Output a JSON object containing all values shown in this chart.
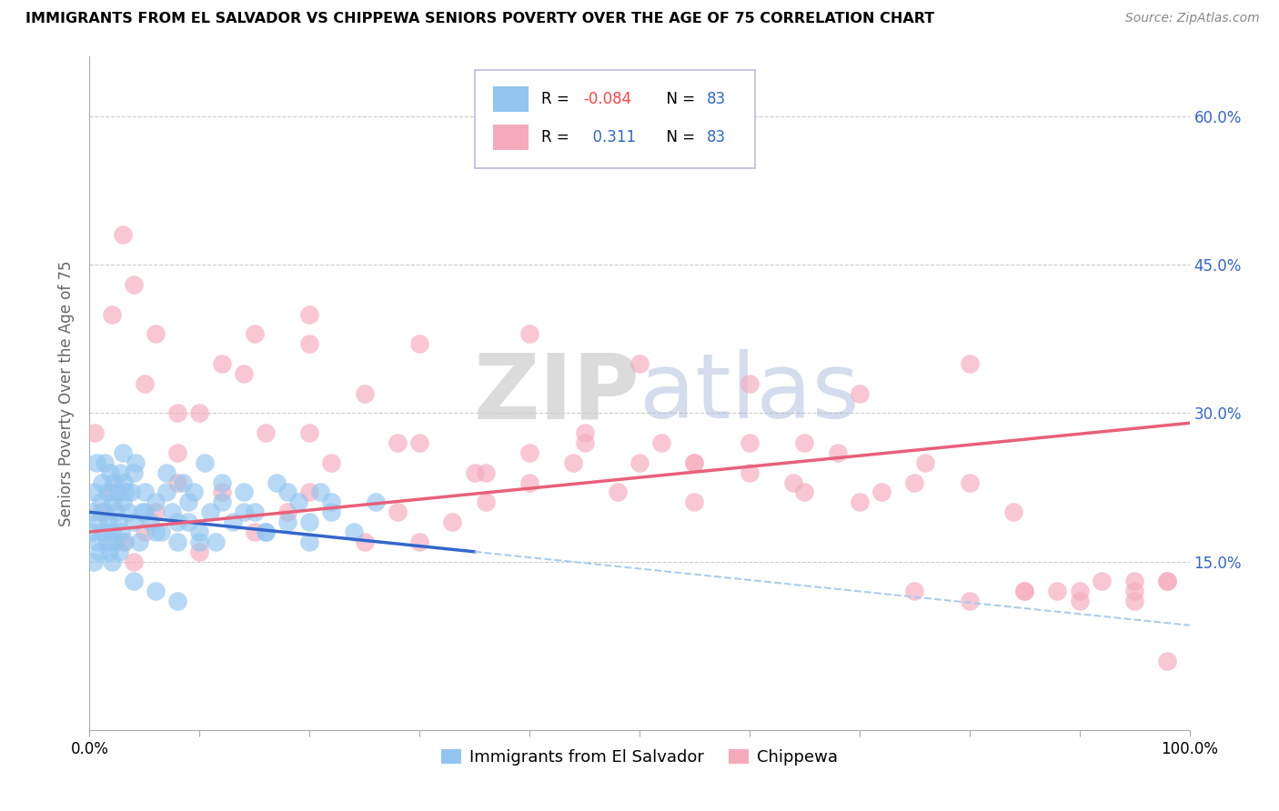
{
  "title": "IMMIGRANTS FROM EL SALVADOR VS CHIPPEWA SENIORS POVERTY OVER THE AGE OF 75 CORRELATION CHART",
  "source": "Source: ZipAtlas.com",
  "ylabel": "Seniors Poverty Over the Age of 75",
  "color_blue": "#92C5F0",
  "color_pink": "#F5AABC",
  "color_blue_line": "#3366CC",
  "color_pink_line": "#E8607A",
  "color_dashed": "#AACCEE",
  "watermark_color": "#D8E8F5",
  "legend_r1_color": "#FF4444",
  "legend_blue_color": "#3366CC",
  "ytick_color": "#3366CC",
  "blue_x": [
    0.2,
    0.3,
    0.4,
    0.5,
    0.6,
    0.7,
    0.8,
    0.9,
    1.0,
    1.1,
    1.2,
    1.3,
    1.4,
    1.5,
    1.6,
    1.7,
    1.8,
    1.9,
    2.0,
    2.1,
    2.2,
    2.3,
    2.4,
    2.5,
    2.6,
    2.7,
    2.8,
    2.9,
    3.0,
    3.1,
    3.2,
    3.5,
    3.8,
    4.0,
    4.2,
    4.5,
    4.8,
    5.0,
    5.5,
    6.0,
    6.5,
    7.0,
    7.5,
    8.0,
    8.5,
    9.0,
    9.5,
    10.0,
    10.5,
    11.0,
    11.5,
    12.0,
    13.0,
    14.0,
    15.0,
    16.0,
    17.0,
    18.0,
    19.0,
    20.0,
    21.0,
    22.0,
    24.0,
    26.0,
    3.0,
    3.3,
    4.0,
    5.0,
    6.0,
    7.0,
    8.0,
    9.0,
    10.0,
    12.0,
    14.0,
    16.0,
    18.0,
    20.0,
    22.0,
    2.0,
    4.0,
    6.0,
    8.0
  ],
  "blue_y": [
    18.0,
    20.0,
    15.0,
    22.0,
    25.0,
    17.0,
    19.0,
    16.0,
    21.0,
    23.0,
    18.0,
    20.0,
    25.0,
    17.0,
    22.0,
    19.0,
    16.0,
    24.0,
    18.0,
    21.0,
    23.0,
    17.0,
    20.0,
    22.0,
    19.0,
    16.0,
    24.0,
    18.0,
    21.0,
    23.0,
    17.0,
    20.0,
    22.0,
    19.0,
    25.0,
    17.0,
    20.0,
    22.0,
    19.0,
    21.0,
    18.0,
    24.0,
    20.0,
    17.0,
    23.0,
    19.0,
    22.0,
    18.0,
    25.0,
    20.0,
    17.0,
    21.0,
    19.0,
    22.0,
    20.0,
    18.0,
    23.0,
    19.0,
    21.0,
    17.0,
    22.0,
    20.0,
    18.0,
    21.0,
    26.0,
    22.0,
    24.0,
    20.0,
    18.0,
    22.0,
    19.0,
    21.0,
    17.0,
    23.0,
    20.0,
    18.0,
    22.0,
    19.0,
    21.0,
    15.0,
    13.0,
    12.0,
    11.0
  ],
  "pink_x": [
    0.5,
    1.0,
    2.0,
    3.0,
    4.0,
    5.0,
    6.0,
    8.0,
    10.0,
    12.0,
    15.0,
    18.0,
    20.0,
    22.0,
    25.0,
    28.0,
    30.0,
    33.0,
    36.0,
    40.0,
    44.0,
    48.0,
    52.0,
    55.0,
    60.0,
    64.0,
    68.0,
    72.0,
    76.0,
    80.0,
    84.0,
    88.0,
    92.0,
    95.0,
    98.0,
    2.0,
    5.0,
    8.0,
    12.0,
    16.0,
    20.0,
    25.0,
    30.0,
    35.0,
    40.0,
    45.0,
    50.0,
    55.0,
    60.0,
    65.0,
    70.0,
    75.0,
    80.0,
    85.0,
    90.0,
    95.0,
    3.0,
    6.0,
    10.0,
    15.0,
    20.0,
    30.0,
    40.0,
    50.0,
    60.0,
    70.0,
    80.0,
    90.0,
    98.0,
    4.0,
    8.0,
    14.0,
    20.0,
    28.0,
    36.0,
    45.0,
    55.0,
    65.0,
    75.0,
    85.0,
    95.0,
    98.0
  ],
  "pink_y": [
    28.0,
    20.0,
    22.0,
    17.0,
    15.0,
    18.0,
    20.0,
    23.0,
    16.0,
    22.0,
    18.0,
    20.0,
    22.0,
    25.0,
    17.0,
    20.0,
    17.0,
    19.0,
    21.0,
    23.0,
    25.0,
    22.0,
    27.0,
    25.0,
    27.0,
    23.0,
    26.0,
    22.0,
    25.0,
    23.0,
    20.0,
    12.0,
    13.0,
    12.0,
    13.0,
    40.0,
    33.0,
    26.0,
    35.0,
    28.0,
    37.0,
    32.0,
    27.0,
    24.0,
    26.0,
    28.0,
    25.0,
    21.0,
    24.0,
    22.0,
    21.0,
    23.0,
    11.0,
    12.0,
    12.0,
    13.0,
    48.0,
    38.0,
    30.0,
    38.0,
    40.0,
    37.0,
    38.0,
    35.0,
    33.0,
    32.0,
    35.0,
    11.0,
    5.0,
    43.0,
    30.0,
    34.0,
    28.0,
    27.0,
    24.0,
    27.0,
    25.0,
    27.0,
    12.0,
    12.0,
    11.0,
    13.0
  ]
}
